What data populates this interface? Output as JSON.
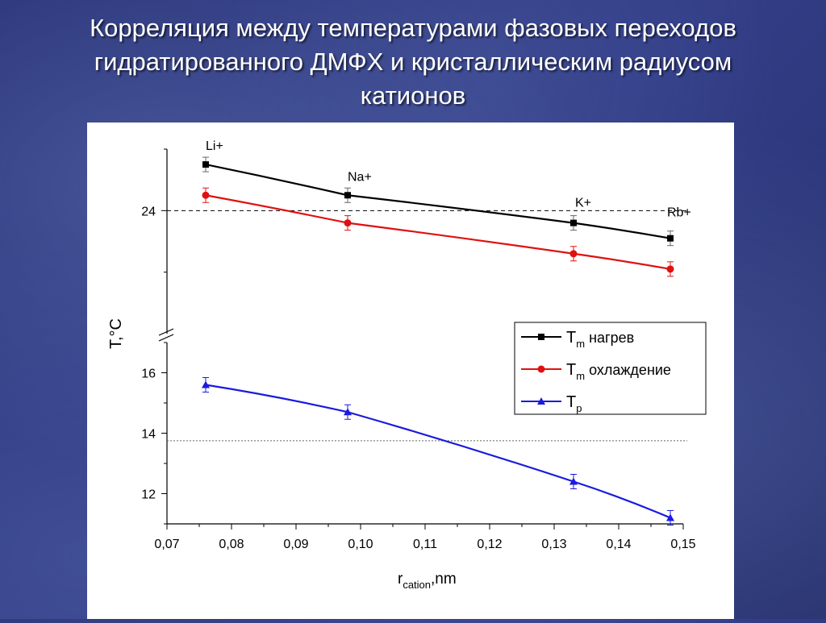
{
  "slide": {
    "title_lines": [
      "Корреляция между температурами фазовых переходов",
      "гидратированного ДМФХ и кристаллическим радиусом",
      "катионов"
    ]
  },
  "colors": {
    "background": "#283274",
    "heating": "#000000",
    "cooling": "#e01010",
    "tp": "#1a1ae0"
  },
  "chart_data": {
    "type": "line",
    "ylabel": "T,°C",
    "xlabel_main": "r",
    "xlabel_sub": "cation",
    "xlabel_tail": ",nm",
    "x_ticks": [
      "0,07",
      "0,08",
      "0,09",
      "0,10",
      "0,11",
      "0,12",
      "0,13",
      "0,14",
      "0,15"
    ],
    "x_tick_values": [
      0.07,
      0.08,
      0.09,
      0.1,
      0.11,
      0.12,
      0.13,
      0.14,
      0.15
    ],
    "xlim": [
      0.07,
      0.15
    ],
    "y_axis_break": true,
    "lower_ylim": [
      11,
      17
    ],
    "lower_y_ticks": [
      "12",
      "14",
      "16"
    ],
    "lower_y_tick_values": [
      12,
      14,
      16
    ],
    "upper_ylim": [
      20,
      26
    ],
    "upper_y_ticks": [
      "24"
    ],
    "upper_y_tick_values": [
      24
    ],
    "x": [
      0.076,
      0.098,
      0.133,
      0.148
    ],
    "point_labels": [
      "Li+",
      "Na+",
      "K+",
      "Rb+"
    ],
    "series": [
      {
        "name_main": "T",
        "name_sub": "m",
        "name_tail": " нагрев",
        "key": "heating",
        "marker": "square",
        "panel": "upper",
        "values": [
          25.5,
          24.5,
          23.6,
          23.1
        ]
      },
      {
        "name_main": "T",
        "name_sub": "m",
        "name_tail": " охлаждение",
        "key": "cooling",
        "marker": "circle",
        "panel": "upper",
        "values": [
          24.5,
          23.6,
          22.6,
          22.1
        ]
      },
      {
        "name_main": "T",
        "name_sub": "p",
        "name_tail": "",
        "key": "tp",
        "marker": "triangle",
        "panel": "lower",
        "values": [
          15.6,
          14.7,
          12.4,
          11.2
        ]
      }
    ],
    "reference_lines": [
      {
        "panel": "upper",
        "value": 24
      },
      {
        "panel": "lower",
        "value": 13.75
      }
    ],
    "legend_position": "right-middle",
    "grid": false
  }
}
